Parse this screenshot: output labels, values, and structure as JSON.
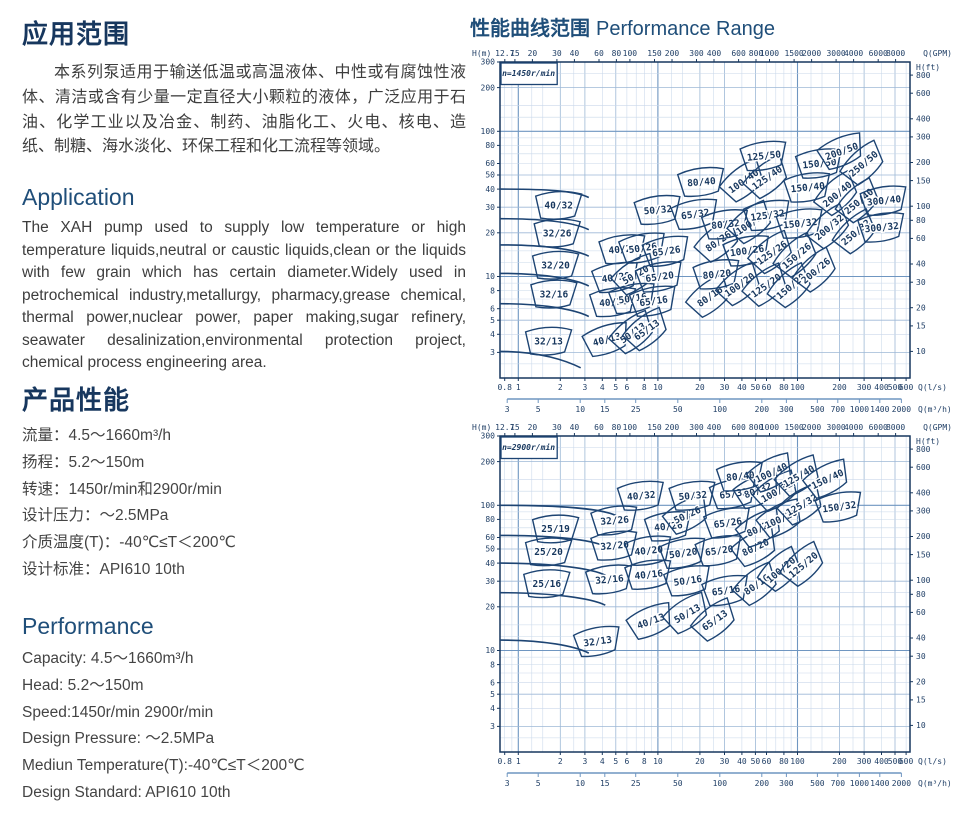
{
  "left": {
    "app_title_cn": "应用范围",
    "app_para_cn": "本系列泵适用于输送低温或高温液体、中性或有腐蚀性液体、清洁或含有少量一定直径大小颗粒的液体，广泛应用于石油、化学工业以及冶金、制药、油脂化工、火电、核电、造纸、制糖、海水淡化、环保工程和化工流程等领域。",
    "app_title_en": "Application",
    "app_para_en": "The XAH pump used to supply low temperature or high temperature liquids,neutral or caustic liquids,clean or the liquids with few grain which has certain diameter.Widely used in petrochemical industry,metallurgy, pharmacy,grease chemical, thermal power,nuclear power, paper making,sugar refinery, seawater desalinization,environmental  protection project, chemical process engineering area.",
    "perf_title_cn": "产品性能",
    "perf_lines_cn": [
      "流量：4.5～1660m³/h",
      "扬程：5.2～150m",
      "转速：1450r/min和2900r/min",
      "设计压力：～2.5MPa",
      "介质温度(T)：-40℃≤T＜200℃",
      "设计标准：API610 10th"
    ],
    "perf_title_en": "Performance",
    "perf_lines_en": [
      "Capacity: 4.5～1660m³/h",
      "Head: 5.2～150m",
      "Speed:1450r/min  2900r/min",
      "Design Pressure: ～2.5MPa",
      "Mediun Temperature(T):-40℃≤T＜200℃",
      "Design Standard: API610 10th"
    ]
  },
  "right": {
    "title_cn": "性能曲线范围",
    "title_en": "Performance Range"
  },
  "colors": {
    "heading": "#17375e",
    "accent": "#1f4e79",
    "body_text": "#3d3d3d",
    "grid_minor": "#c9d8ea",
    "grid_mid": "#9db8d6",
    "grid_strong": "#6f96c1",
    "frame": "#17375e",
    "curve": "#1d4473",
    "axis_text": "#203f66"
  },
  "chart_data": [
    {
      "type": "area",
      "title": "n=1450r/min",
      "x_range_ls": [
        0.74,
        640
      ],
      "y_range_m": [
        2,
        300
      ],
      "axis_labels": {
        "top_left": "H(m)",
        "top_right": "Q(GPM)",
        "right": "H(ft)",
        "bottom_ls": "Q(l/s)",
        "bottom_m3h": "Q(m³/h)"
      },
      "top_ticks_gpm": [
        [
          "12.7",
          0.8013
        ],
        [
          "15",
          0.9464
        ],
        [
          "20",
          1.2618
        ],
        [
          "30",
          1.8927
        ],
        [
          "40",
          2.5236
        ],
        [
          "60",
          3.7854
        ],
        [
          "80",
          5.0472
        ],
        [
          "100",
          6.309
        ],
        [
          "150",
          9.4635
        ],
        [
          "200",
          12.618
        ],
        [
          "300",
          18.927
        ],
        [
          "400",
          25.236
        ],
        [
          "600",
          37.854
        ],
        [
          "800",
          50.472
        ],
        [
          "1000",
          63.09
        ],
        [
          "1500",
          94.635
        ],
        [
          "2000",
          126.18
        ],
        [
          "3000",
          189.27
        ],
        [
          "4000",
          252.36
        ],
        [
          "6000",
          378.54
        ],
        [
          "8000",
          504.72
        ]
      ],
      "left_ticks_m": [
        300,
        200,
        100,
        80,
        60,
        50,
        40,
        30,
        20,
        10,
        8,
        6,
        5,
        4,
        3
      ],
      "right_ticks_ft": [
        [
          "800",
          243.84
        ],
        [
          "600",
          182.88
        ],
        [
          "400",
          121.92
        ],
        [
          "300",
          91.44
        ],
        [
          "200",
          60.96
        ],
        [
          "150",
          45.72
        ],
        [
          "100",
          30.48
        ],
        [
          "80",
          24.38
        ],
        [
          "60",
          18.29
        ],
        [
          "40",
          12.19
        ],
        [
          "30",
          9.14
        ],
        [
          "20",
          6.1
        ],
        [
          "15",
          4.57
        ],
        [
          "10",
          3.05
        ]
      ],
      "bottom_ticks_ls": [
        [
          "0.8",
          0.8
        ],
        [
          "1",
          1
        ],
        [
          "2",
          2
        ],
        [
          "3",
          3
        ],
        [
          "4",
          4
        ],
        [
          "5",
          5
        ],
        [
          "6",
          6
        ],
        [
          "8",
          8
        ],
        [
          "10",
          10
        ],
        [
          "20",
          20
        ],
        [
          "30",
          30
        ],
        [
          "40",
          40
        ],
        [
          "50",
          50
        ],
        [
          "60",
          60
        ],
        [
          "80",
          80
        ],
        [
          "100",
          100
        ],
        [
          "200",
          200
        ],
        [
          "300",
          300
        ],
        [
          "400",
          400
        ],
        [
          "500",
          500
        ],
        [
          "600",
          600
        ]
      ],
      "bottom_ticks_m3h": [
        [
          "3",
          0.8333
        ],
        [
          "5",
          1.3889
        ],
        [
          "10",
          2.7778
        ],
        [
          "15",
          4.1667
        ],
        [
          "25",
          6.9444
        ],
        [
          "50",
          13.889
        ],
        [
          "100",
          27.778
        ],
        [
          "200",
          55.556
        ],
        [
          "300",
          83.333
        ],
        [
          "500",
          138.89
        ],
        [
          "700",
          194.44
        ],
        [
          "1000",
          277.78
        ],
        [
          "1400",
          388.89
        ],
        [
          "2000",
          555.56
        ]
      ],
      "left_curves": [
        [
          40,
          3.2,
          35
        ],
        [
          25,
          3.2,
          21
        ],
        [
          16.5,
          3.2,
          13.8
        ],
        [
          10.5,
          3.2,
          8.6
        ],
        [
          6.5,
          3.2,
          5.3
        ],
        [
          3.05,
          2.8,
          2.35
        ]
      ],
      "regions": [
        [
          "32/13",
          1.65,
          3.6,
          0
        ],
        [
          "32/16",
          1.8,
          7.6,
          0
        ],
        [
          "32/20",
          1.85,
          12,
          0
        ],
        [
          "32/26",
          1.9,
          20,
          0
        ],
        [
          "40/32",
          1.95,
          31,
          0
        ],
        [
          "40/13",
          4.3,
          3.7,
          -15
        ],
        [
          "40/16",
          4.8,
          6.7,
          -5
        ],
        [
          "40/20",
          5.0,
          9.9,
          -8
        ],
        [
          "40/26",
          5.6,
          15.5,
          -5
        ],
        [
          "50/13",
          6.6,
          4.1,
          -35
        ],
        [
          "65/13",
          8.3,
          4.3,
          -35
        ],
        [
          "50/16",
          6.6,
          7.1,
          -8
        ],
        [
          "65/16",
          9.3,
          6.8,
          -8
        ],
        [
          "50/20",
          6.9,
          10.3,
          -30
        ],
        [
          "65/20",
          10.3,
          10,
          -8
        ],
        [
          "50/26",
          7.8,
          15.8,
          -8
        ],
        [
          "65/26",
          11.5,
          15,
          -8
        ],
        [
          "50/32",
          10,
          28.9,
          -5
        ],
        [
          "65/32",
          18.5,
          27,
          -8
        ],
        [
          "80/16",
          23.5,
          7.3,
          -35
        ],
        [
          "80/20",
          26.5,
          10.4,
          -6
        ],
        [
          "80/26",
          27,
          17.5,
          -35
        ],
        [
          "80/32",
          30.5,
          23,
          -6
        ],
        [
          "80/40",
          20.5,
          45,
          -5
        ],
        [
          "100/20",
          38.5,
          8.8,
          -35
        ],
        [
          "100/26",
          43.5,
          15.1,
          -8
        ],
        [
          "100/32",
          46.5,
          23.5,
          -35
        ],
        [
          "100/40",
          41,
          45.5,
          -35
        ],
        [
          "125/20",
          59.5,
          8.7,
          -35
        ],
        [
          "125/26",
          65.5,
          14.6,
          -35
        ],
        [
          "125/32",
          61,
          26.5,
          -8
        ],
        [
          "125/40",
          60.5,
          48,
          -35
        ],
        [
          "125/50",
          57.5,
          68,
          -6
        ],
        [
          "150/20",
          89.5,
          8.6,
          -40
        ],
        [
          "150/26",
          98.5,
          13.9,
          -40
        ],
        [
          "150/32",
          104.5,
          23.3,
          -6
        ],
        [
          "150/40",
          118.5,
          41.3,
          -6
        ],
        [
          "150/50",
          143.5,
          60.3,
          -6
        ],
        [
          "200/26",
          135,
          11,
          -40
        ],
        [
          "200/32",
          168.5,
          21.9,
          -40
        ],
        [
          "200/40",
          192.5,
          37,
          -40
        ],
        [
          "200/50",
          207.5,
          73,
          -20
        ],
        [
          "250/32",
          261.5,
          20.2,
          -40
        ],
        [
          "250/40",
          274.5,
          33,
          -40
        ],
        [
          "250/50",
          296.5,
          60,
          -40
        ],
        [
          "300/32",
          401.5,
          21.9,
          -6
        ],
        [
          "300/40",
          416.5,
          33.5,
          -6
        ]
      ]
    },
    {
      "type": "area",
      "title": "n=2900r/min",
      "x_range_ls": [
        0.74,
        640
      ],
      "y_range_m": [
        2,
        300
      ],
      "axis_labels": {
        "top_left": "H(m)",
        "top_right": "Q(GPM)",
        "right": "H(ft)",
        "bottom_ls": "Q(l/s)",
        "bottom_m3h": "Q(m³/h)"
      },
      "top_ticks_gpm": [
        [
          "12.7",
          0.8013
        ],
        [
          "15",
          0.9464
        ],
        [
          "20",
          1.2618
        ],
        [
          "30",
          1.8927
        ],
        [
          "40",
          2.5236
        ],
        [
          "60",
          3.7854
        ],
        [
          "80",
          5.0472
        ],
        [
          "100",
          6.309
        ],
        [
          "150",
          9.4635
        ],
        [
          "200",
          12.618
        ],
        [
          "300",
          18.927
        ],
        [
          "400",
          25.236
        ],
        [
          "600",
          37.854
        ],
        [
          "800",
          50.472
        ],
        [
          "1000",
          63.09
        ],
        [
          "1500",
          94.635
        ],
        [
          "2000",
          126.18
        ],
        [
          "3000",
          189.27
        ],
        [
          "4000",
          252.36
        ],
        [
          "6000",
          378.54
        ],
        [
          "8000",
          504.72
        ]
      ],
      "left_ticks_m": [
        300,
        200,
        100,
        80,
        60,
        50,
        40,
        30,
        20,
        10,
        8,
        6,
        5,
        4,
        3
      ],
      "right_ticks_ft": [
        [
          "800",
          243.84
        ],
        [
          "600",
          182.88
        ],
        [
          "400",
          121.92
        ],
        [
          "300",
          91.44
        ],
        [
          "200",
          60.96
        ],
        [
          "150",
          45.72
        ],
        [
          "100",
          30.48
        ],
        [
          "80",
          24.38
        ],
        [
          "60",
          18.29
        ],
        [
          "40",
          12.19
        ],
        [
          "30",
          9.14
        ],
        [
          "20",
          6.1
        ],
        [
          "15",
          4.57
        ],
        [
          "10",
          3.05
        ]
      ],
      "bottom_ticks_ls": [
        [
          "0.8",
          0.8
        ],
        [
          "1",
          1
        ],
        [
          "2",
          2
        ],
        [
          "3",
          3
        ],
        [
          "4",
          4
        ],
        [
          "5",
          5
        ],
        [
          "6",
          6
        ],
        [
          "8",
          8
        ],
        [
          "10",
          10
        ],
        [
          "20",
          20
        ],
        [
          "30",
          30
        ],
        [
          "40",
          40
        ],
        [
          "50",
          50
        ],
        [
          "60",
          60
        ],
        [
          "80",
          80
        ],
        [
          "100",
          100
        ],
        [
          "200",
          200
        ],
        [
          "300",
          300
        ],
        [
          "400",
          400
        ],
        [
          "500",
          500
        ],
        [
          "600",
          600
        ]
      ],
      "bottom_ticks_m3h": [
        [
          "3",
          0.8333
        ],
        [
          "5",
          1.3889
        ],
        [
          "10",
          2.7778
        ],
        [
          "15",
          4.1667
        ],
        [
          "25",
          6.9444
        ],
        [
          "50",
          13.889
        ],
        [
          "100",
          27.778
        ],
        [
          "200",
          55.556
        ],
        [
          "300",
          83.333
        ],
        [
          "500",
          138.89
        ],
        [
          "700",
          194.44
        ],
        [
          "1000",
          277.78
        ],
        [
          "1400",
          388.89
        ],
        [
          "2000",
          555.56
        ]
      ],
      "left_curves": [
        [
          100,
          5,
          85
        ],
        [
          62,
          4.2,
          52
        ],
        [
          40,
          4.2,
          33
        ],
        [
          25,
          4.2,
          20.5
        ],
        [
          11.8,
          3.2,
          9.6
        ]
      ],
      "regions": [
        [
          "25/16",
          1.6,
          29,
          0
        ],
        [
          "25/20",
          1.65,
          48,
          0
        ],
        [
          "25/19",
          1.85,
          69,
          0
        ],
        [
          "32/13",
          3.7,
          11.6,
          -8
        ],
        [
          "32/16",
          4.5,
          31,
          -5
        ],
        [
          "32/20",
          4.9,
          53,
          -5
        ],
        [
          "32/26",
          4.9,
          79,
          -5
        ],
        [
          "40/13",
          8.9,
          16,
          -20
        ],
        [
          "40/16",
          8.6,
          33.5,
          -6
        ],
        [
          "40/20",
          8.6,
          49,
          -6
        ],
        [
          "40/26",
          11.9,
          72,
          -6
        ],
        [
          "40/32",
          7.6,
          117,
          -5
        ],
        [
          "50/13",
          16.2,
          18,
          -30
        ],
        [
          "50/16",
          16.4,
          30.4,
          -8
        ],
        [
          "50/20",
          15.2,
          47,
          -8
        ],
        [
          "50/26",
          16.2,
          86,
          -25
        ],
        [
          "50/32",
          17.8,
          117,
          -5
        ],
        [
          "65/13",
          25.5,
          16.2,
          -35
        ],
        [
          "65/16",
          30.7,
          26,
          -8
        ],
        [
          "65/20",
          27.5,
          49,
          -8
        ],
        [
          "65/26",
          31.7,
          76,
          -8
        ],
        [
          "65/32",
          34.8,
          121,
          -8
        ],
        [
          "80/16",
          51,
          28.5,
          -35
        ],
        [
          "80/20",
          50,
          51.5,
          -25
        ],
        [
          "80/26",
          54,
          70,
          -25
        ],
        [
          "80/32",
          52,
          127,
          -20
        ],
        [
          "80/40",
          39,
          159,
          -6
        ],
        [
          "100/20",
          76,
          36,
          -40
        ],
        [
          "100/26",
          76,
          81,
          -25
        ],
        [
          "100/32",
          71,
          125,
          -30
        ],
        [
          "100/40",
          65,
          168,
          -25
        ],
        [
          "125/20",
          110,
          39,
          -40
        ],
        [
          "125/32",
          107,
          101,
          -30
        ],
        [
          "125/40",
          102,
          159,
          -30
        ],
        [
          "150/32",
          199,
          98,
          -8
        ],
        [
          "150/40",
          164,
          152,
          -25
        ]
      ]
    }
  ]
}
